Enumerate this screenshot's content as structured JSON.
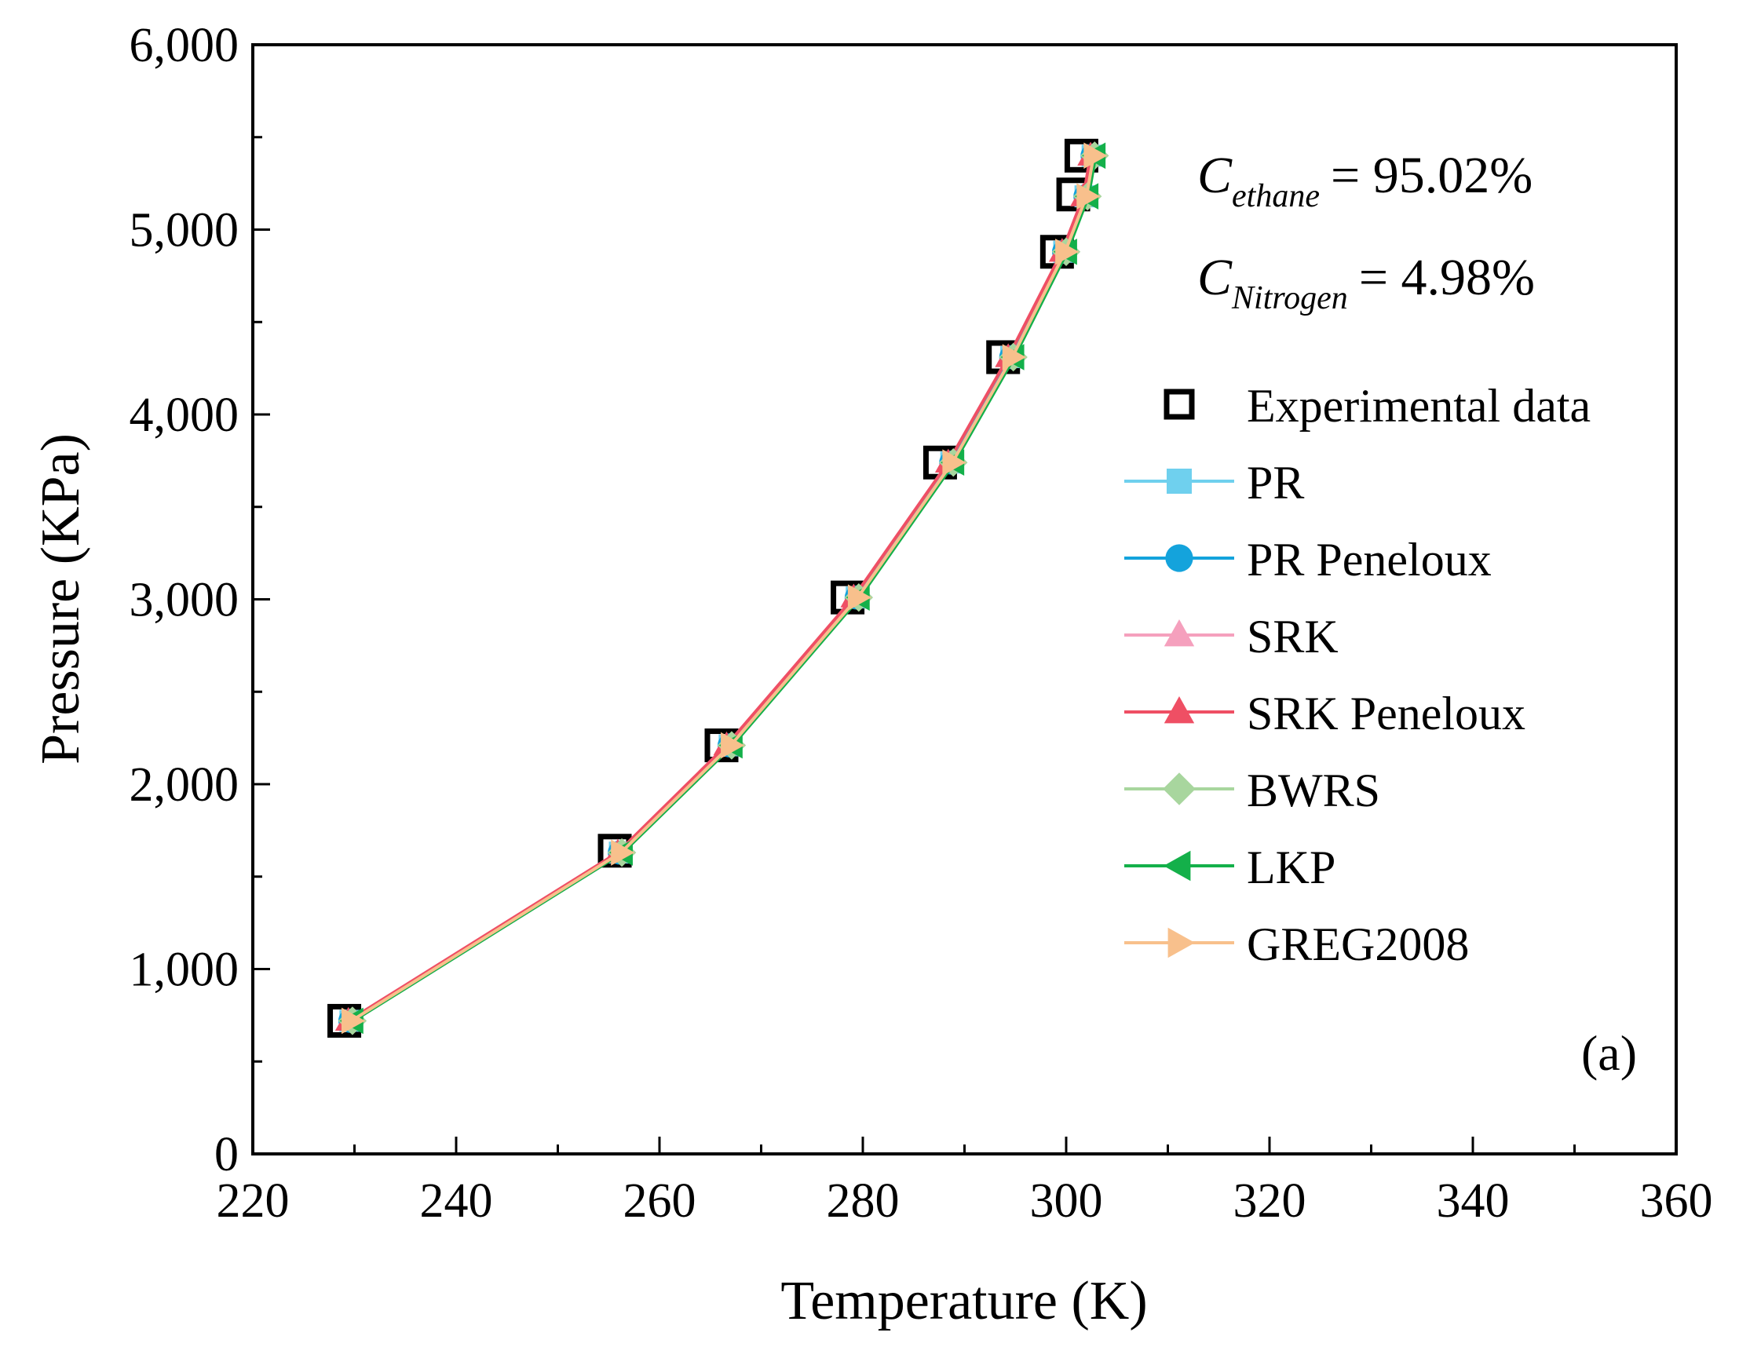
{
  "chart_data": {
    "type": "line",
    "title": "",
    "xlabel": "Temperature (K)",
    "ylabel": "Pressure (KPa)",
    "xlim": [
      220,
      360
    ],
    "ylim": [
      0,
      6000
    ],
    "x_ticks": [
      220,
      240,
      260,
      280,
      300,
      320,
      340,
      360
    ],
    "y_ticks": [
      0,
      1000,
      2000,
      3000,
      4000,
      5000,
      6000
    ],
    "x_tick_labels": [
      "220",
      "240",
      "260",
      "280",
      "300",
      "320",
      "340",
      "360"
    ],
    "y_tick_labels": [
      "0",
      "1,000",
      "2,000",
      "3,000",
      "4,000",
      "5,000",
      "6,000"
    ],
    "grid": false,
    "legend_position": "right",
    "panel_label": "(a)",
    "annotations": [
      {
        "symbol": "C",
        "subscript": "ethane",
        "value": "= 95.02%"
      },
      {
        "symbol": "C",
        "subscript": "Nitrogen",
        "value": "= 4.98%"
      }
    ],
    "series": [
      {
        "name": "Experimental data",
        "marker": "open-square",
        "color": "#000000",
        "line": false,
        "x": [
          229.0,
          255.6,
          266.1,
          278.5,
          287.6,
          293.8,
          299.1,
          300.7,
          301.5
        ],
        "y": [
          720,
          1640,
          2210,
          3010,
          3740,
          4310,
          4880,
          5190,
          5400
        ]
      },
      {
        "name": "PR",
        "marker": "square",
        "color": "#6fd0ee",
        "line": true,
        "x": [
          229.6,
          256.1,
          266.9,
          279.4,
          288.7,
          294.6,
          299.8,
          301.9,
          302.6
        ],
        "y": [
          720,
          1630,
          2210,
          3010,
          3740,
          4310,
          4880,
          5180,
          5400
        ]
      },
      {
        "name": "PR Peneloux",
        "marker": "circle",
        "color": "#14a3dc",
        "line": true,
        "x": [
          229.6,
          256.1,
          266.9,
          279.4,
          288.7,
          294.6,
          299.8,
          301.9,
          302.6
        ],
        "y": [
          720,
          1630,
          2210,
          3010,
          3740,
          4310,
          4880,
          5180,
          5400
        ]
      },
      {
        "name": "SRK",
        "marker": "triangle-up",
        "color": "#f5a0bd",
        "line": true,
        "x": [
          229.4,
          255.9,
          266.6,
          279.1,
          288.4,
          294.3,
          299.6,
          301.7,
          302.4
        ],
        "y": [
          720,
          1630,
          2210,
          3010,
          3740,
          4310,
          4880,
          5180,
          5400
        ]
      },
      {
        "name": "SRK Peneloux",
        "marker": "triangle-up",
        "color": "#ef4f64",
        "line": true,
        "x": [
          229.4,
          255.9,
          266.6,
          279.1,
          288.4,
          294.3,
          299.6,
          301.7,
          302.4
        ],
        "y": [
          720,
          1630,
          2210,
          3010,
          3740,
          4310,
          4880,
          5180,
          5400
        ]
      },
      {
        "name": "BWRS",
        "marker": "diamond",
        "color": "#a8d69e",
        "line": true,
        "x": [
          229.8,
          256.3,
          267.1,
          279.6,
          288.9,
          294.8,
          300.0,
          302.1,
          302.8
        ],
        "y": [
          720,
          1630,
          2210,
          3010,
          3740,
          4310,
          4880,
          5180,
          5400
        ]
      },
      {
        "name": "LKP",
        "marker": "triangle-left",
        "color": "#14b04a",
        "line": true,
        "x": [
          229.9,
          256.4,
          267.2,
          279.7,
          289.0,
          294.9,
          300.1,
          302.2,
          302.9
        ],
        "y": [
          720,
          1630,
          2210,
          3010,
          3740,
          4310,
          4880,
          5180,
          5400
        ]
      },
      {
        "name": "GREG2008",
        "marker": "triangle-right",
        "color": "#f8c08c",
        "line": true,
        "x": [
          229.7,
          256.2,
          267.0,
          279.5,
          288.8,
          294.7,
          299.9,
          302.0,
          302.7
        ],
        "y": [
          720,
          1630,
          2210,
          3010,
          3740,
          4310,
          4880,
          5180,
          5400
        ]
      }
    ]
  }
}
